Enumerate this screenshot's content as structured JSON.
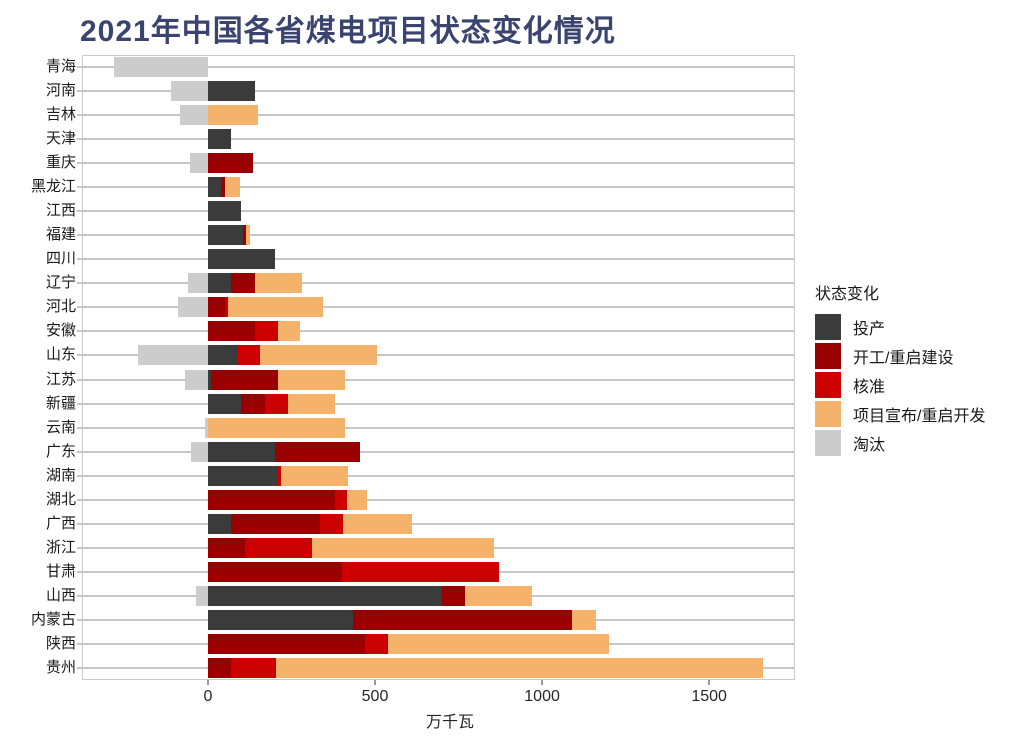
{
  "title": "2021年中国各省煤电项目状态变化情况",
  "chart_data": {
    "type": "bar",
    "orientation": "horizontal",
    "stacked": true,
    "title": "2021年中国各省煤电项目状态变化情况",
    "xlabel": "万千瓦",
    "legend_title": "状态变化",
    "legend_position": "right",
    "grid": "horizontal-category-lines",
    "x_ticks": [
      0,
      500,
      1000,
      1500
    ],
    "xlim": [
      -377,
      1757
    ],
    "units": "万千瓦",
    "categories": [
      "青海",
      "河南",
      "吉林",
      "天津",
      "重庆",
      "黑龙江",
      "江西",
      "福建",
      "四川",
      "辽宁",
      "河北",
      "安徽",
      "山东",
      "江苏",
      "新疆",
      "云南",
      "广东",
      "湖南",
      "湖北",
      "广西",
      "浙江",
      "甘肃",
      "山西",
      "内蒙古",
      "陕西",
      "贵州"
    ],
    "series": [
      {
        "name": "投产",
        "color": "#3b3b3b",
        "direction": "positive",
        "values": [
          0,
          140,
          0,
          70,
          0,
          40,
          100,
          105,
          200,
          70,
          0,
          0,
          90,
          10,
          100,
          0,
          200,
          210,
          0,
          70,
          0,
          0,
          700,
          435,
          0,
          0
        ]
      },
      {
        "name": "开工/重启建设",
        "color": "#990000",
        "direction": "positive",
        "values": [
          0,
          0,
          0,
          0,
          135,
          10,
          0,
          10,
          0,
          70,
          50,
          140,
          0,
          200,
          70,
          0,
          255,
          0,
          380,
          265,
          110,
          400,
          70,
          655,
          470,
          70
        ]
      },
      {
        "name": "核准",
        "color": "#cc0000",
        "direction": "positive",
        "values": [
          0,
          0,
          0,
          0,
          0,
          0,
          0,
          0,
          0,
          0,
          10,
          70,
          65,
          0,
          70,
          0,
          0,
          10,
          35,
          70,
          200,
          470,
          0,
          0,
          70,
          135
        ]
      },
      {
        "name": "项目宣布/重启开发",
        "color": "#f4b26b",
        "direction": "positive",
        "values": [
          0,
          0,
          150,
          0,
          0,
          45,
          0,
          10,
          0,
          140,
          285,
          65,
          350,
          200,
          140,
          410,
          0,
          200,
          60,
          205,
          545,
          0,
          200,
          70,
          660,
          1455
        ]
      },
      {
        "name": "淘汰",
        "color": "#cccccc",
        "direction": "negative",
        "values": [
          280,
          110,
          85,
          0,
          55,
          0,
          0,
          0,
          0,
          60,
          90,
          0,
          210,
          70,
          0,
          10,
          50,
          0,
          0,
          0,
          0,
          0,
          35,
          0,
          0,
          0
        ]
      }
    ]
  }
}
